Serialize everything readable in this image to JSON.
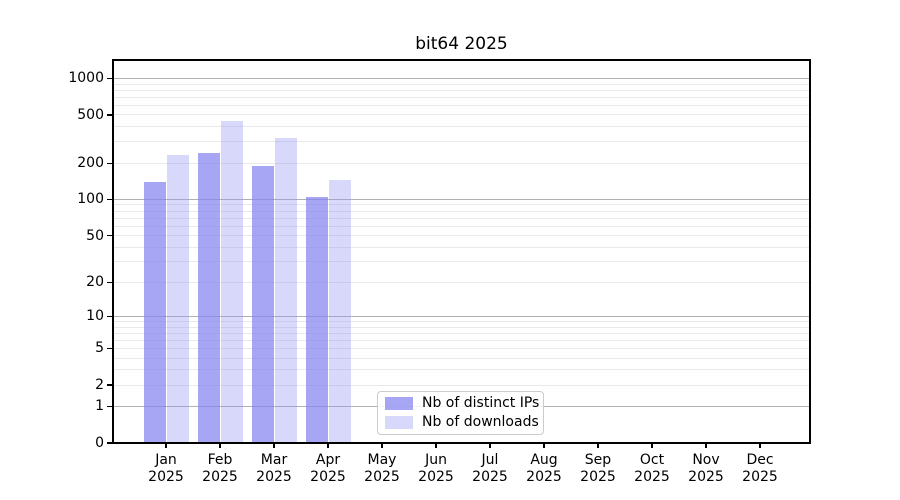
{
  "title": "bit64 2025",
  "chart_data": {
    "type": "bar",
    "title": "bit64 2025",
    "y_scale": "log1p",
    "ylim": [
      0,
      1200
    ],
    "y_ticks": [
      0,
      1,
      2,
      5,
      10,
      20,
      50,
      100,
      200,
      500,
      1000
    ],
    "grid_major": [
      1,
      10,
      100,
      1000
    ],
    "grid_minor": [
      2,
      3,
      4,
      5,
      6,
      7,
      8,
      9,
      20,
      30,
      40,
      50,
      60,
      70,
      80,
      90,
      200,
      300,
      400,
      500,
      600,
      700,
      800,
      900
    ],
    "grid": "on",
    "categories": [
      "Jan",
      "Feb",
      "Mar",
      "Apr",
      "May",
      "Jun",
      "Jul",
      "Aug",
      "Sep",
      "Oct",
      "Nov",
      "Dec"
    ],
    "year_label": "2025",
    "series": [
      {
        "name": "Nb of distinct IPs",
        "color": "#a6a6f5",
        "fill_rgba": "rgba(132,132,241,0.72)",
        "values": [
          140,
          245,
          190,
          105,
          null,
          null,
          null,
          null,
          null,
          null,
          null,
          null
        ]
      },
      {
        "name": "Nb of downloads",
        "color": "#d8d8fa",
        "fill_rgba": "rgba(146,146,241,0.36)",
        "values": [
          235,
          450,
          320,
          145,
          null,
          null,
          null,
          null,
          null,
          null,
          null,
          null
        ]
      }
    ],
    "legend_position": "lower center",
    "colors": {
      "grid_major": "#b1b1b1",
      "grid_minor": "#e9e9e9",
      "axis": "#000000",
      "background": "#ffffff"
    }
  }
}
